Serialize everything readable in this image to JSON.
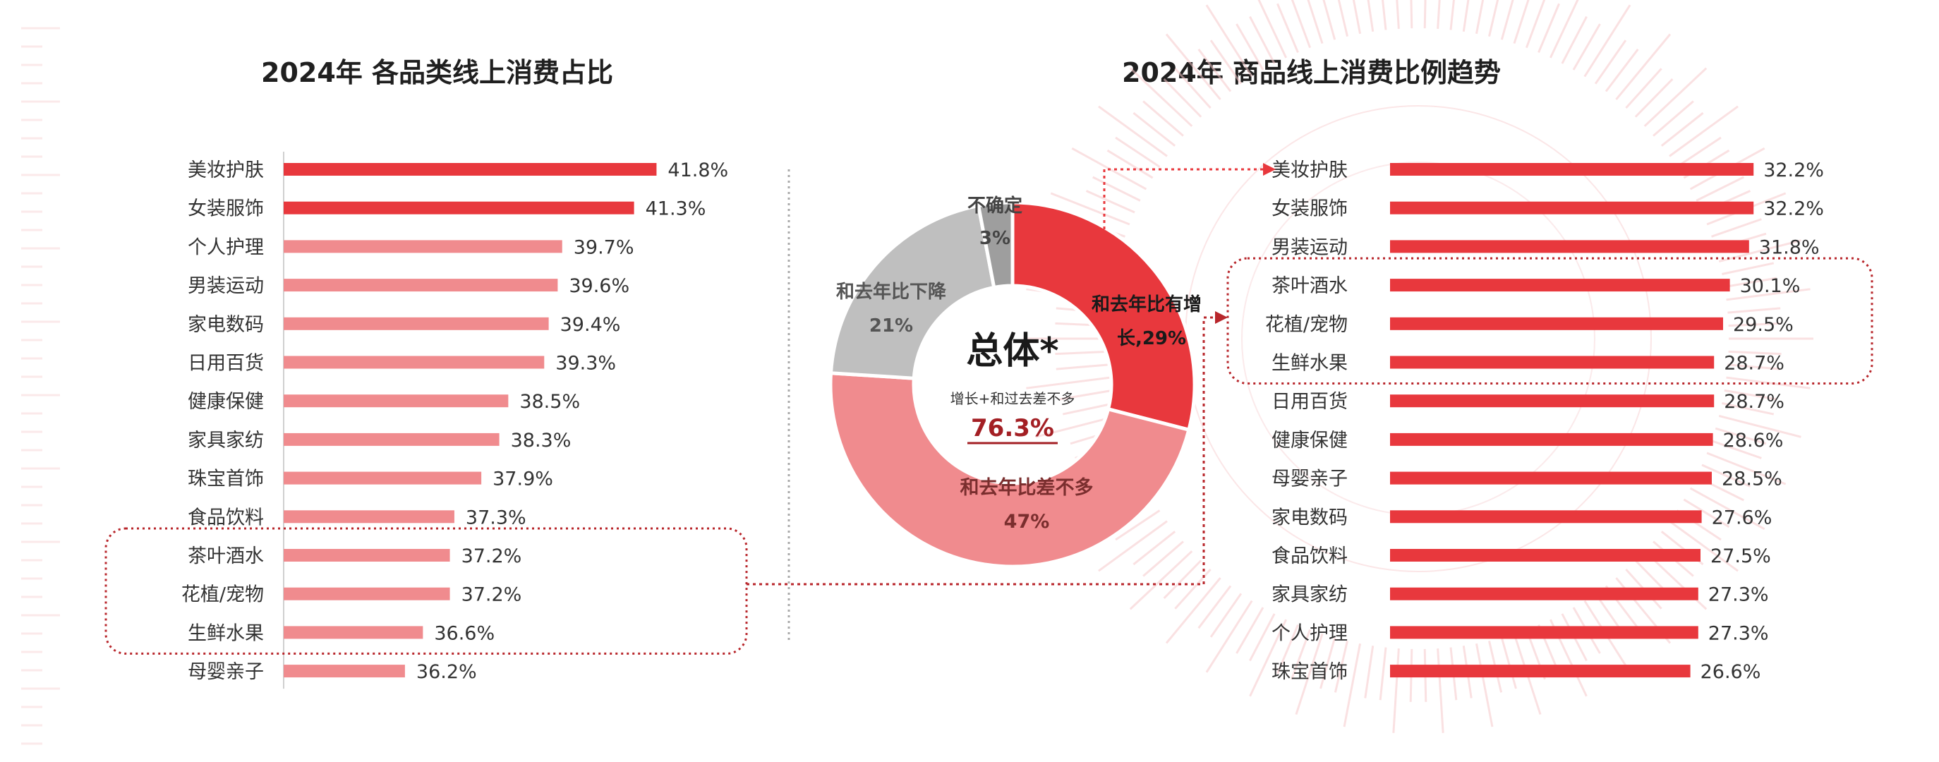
{
  "colors": {
    "accent": "#e8383d",
    "light": "#f08b8e",
    "grey": "#bfbfbf",
    "dark_grey": "#9e9e9e",
    "dark_red": "#a31f24",
    "box_red": "#b8262b"
  },
  "left_title": "2024年 各品类线上消费占比",
  "right_title": "2024年 商品线上消费比例趋势",
  "chart_data": [
    {
      "type": "bar",
      "orientation": "horizontal",
      "title": "2024年 各品类线上消费占比",
      "categories": [
        "美妆护肤",
        "女装服饰",
        "个人护理",
        "男装运动",
        "家电数码",
        "日用百货",
        "健康保健",
        "家具家纺",
        "珠宝首饰",
        "食品饮料",
        "茶叶酒水",
        "花植/宠物",
        "生鲜水果",
        "母婴亲子"
      ],
      "values": [
        41.8,
        41.3,
        39.7,
        39.6,
        39.4,
        39.3,
        38.5,
        38.3,
        37.9,
        37.3,
        37.2,
        37.2,
        36.6,
        36.2
      ],
      "labels": [
        "41.8%",
        "41.3%",
        "39.7%",
        "39.6%",
        "39.4%",
        "39.3%",
        "38.5%",
        "38.3%",
        "37.9%",
        "37.3%",
        "37.2%",
        "37.2%",
        "36.6%",
        "36.2%"
      ],
      "highlight_top": 2,
      "highlighted_group": [
        "茶叶酒水",
        "花植/宠物",
        "生鲜水果"
      ],
      "xlim": [
        33.5,
        42.5
      ],
      "unit": "%"
    },
    {
      "type": "pie",
      "variant": "donut",
      "center_title": "总体*",
      "center_subtitle": "增长+和过去差不多",
      "center_value": "76.3%",
      "slices": [
        {
          "label": "和去年比有增长",
          "value": 29,
          "display": "和去年比有增长,29%"
        },
        {
          "label": "和去年比差不多",
          "value": 47,
          "display": "和去年比差不多 47%"
        },
        {
          "label": "和去年比下降",
          "value": 21,
          "display": "和去年比下降 21%"
        },
        {
          "label": "不确定",
          "value": 3,
          "display": "不确定 3%"
        }
      ],
      "slice_labels": {
        "up_line1": "和去年比有增",
        "up_line2": "长,29%",
        "same_line1": "和去年比差不多",
        "same_line2": "47%",
        "down_line1": "和去年比下降",
        "down_line2": "21%",
        "unsure_line1": "不确定",
        "unsure_line2": "3%"
      }
    },
    {
      "type": "bar",
      "orientation": "horizontal",
      "title": "2024年 商品线上消费比例趋势",
      "categories": [
        "美妆护肤",
        "女装服饰",
        "男装运动",
        "茶叶酒水",
        "花植/宠物",
        "生鲜水果",
        "日用百货",
        "健康保健",
        "母婴亲子",
        "家电数码",
        "食品饮料",
        "家具家纺",
        "个人护理",
        "珠宝首饰"
      ],
      "values": [
        32.2,
        32.2,
        31.8,
        30.1,
        29.5,
        28.7,
        28.7,
        28.6,
        28.5,
        27.6,
        27.5,
        27.3,
        27.3,
        26.6
      ],
      "labels": [
        "32.2%",
        "32.2%",
        "31.8%",
        "30.1%",
        "29.5%",
        "28.7%",
        "28.7%",
        "28.6%",
        "28.5%",
        "27.6%",
        "27.5%",
        "27.3%",
        "27.3%",
        "26.6%"
      ],
      "highlighted_group": [
        "茶叶酒水",
        "花植/宠物",
        "生鲜水果"
      ],
      "xlim": [
        0,
        34.5
      ],
      "unit": "%"
    }
  ]
}
